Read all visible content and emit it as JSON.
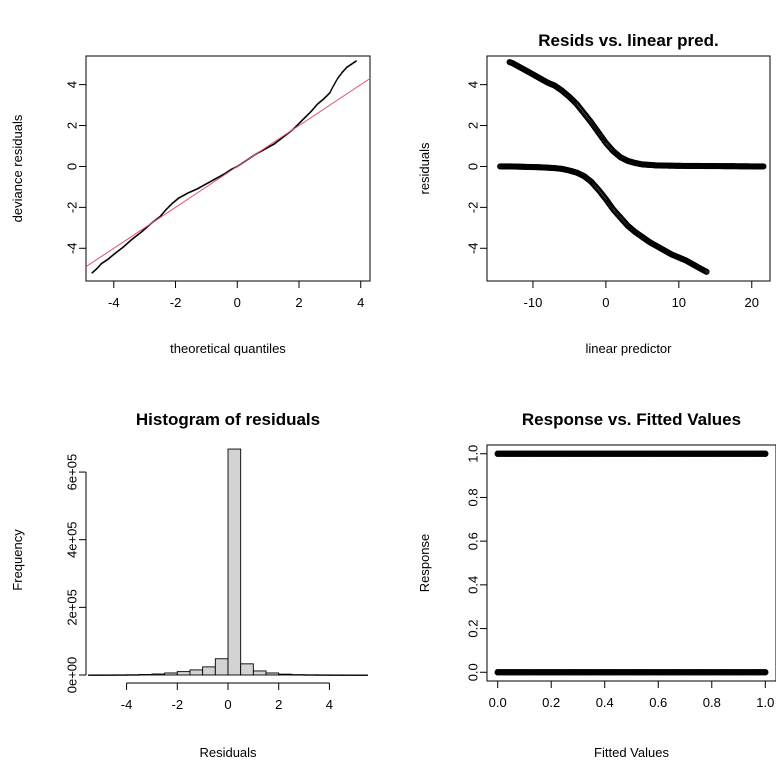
{
  "chart_data": [
    {
      "type": "scatter",
      "title": "",
      "xlabel": "theoretical quantiles",
      "ylabel": "deviance residuals",
      "xlim": [
        -4.9,
        4.3
      ],
      "ylim": [
        -5.6,
        5.4
      ],
      "x_ticks": [
        -4,
        -2,
        0,
        2,
        4
      ],
      "y_ticks": [
        -4,
        -2,
        0,
        2,
        4
      ],
      "point_color": "#000000",
      "reference_line": {
        "color": "#DF536B",
        "intercept": 0,
        "slope": 1
      },
      "points": [
        [
          -4.7,
          -5.2
        ],
        [
          -4.55,
          -5.0
        ],
        [
          -4.4,
          -4.75
        ],
        [
          -4.2,
          -4.55
        ],
        [
          -4.0,
          -4.3
        ],
        [
          -3.7,
          -3.95
        ],
        [
          -3.4,
          -3.55
        ],
        [
          -3.1,
          -3.2
        ],
        [
          -2.8,
          -2.8
        ],
        [
          -2.5,
          -2.45
        ],
        [
          -2.3,
          -2.1
        ],
        [
          -2.1,
          -1.8
        ],
        [
          -1.9,
          -1.55
        ],
        [
          -1.6,
          -1.3
        ],
        [
          -1.3,
          -1.1
        ],
        [
          -1.0,
          -0.85
        ],
        [
          -0.7,
          -0.6
        ],
        [
          -0.4,
          -0.35
        ],
        [
          -0.2,
          -0.15
        ],
        [
          0.0,
          0.0
        ],
        [
          0.3,
          0.3
        ],
        [
          0.6,
          0.6
        ],
        [
          0.9,
          0.85
        ],
        [
          1.2,
          1.1
        ],
        [
          1.5,
          1.45
        ],
        [
          1.8,
          1.8
        ],
        [
          2.0,
          2.1
        ],
        [
          2.2,
          2.4
        ],
        [
          2.4,
          2.7
        ],
        [
          2.6,
          3.05
        ],
        [
          2.8,
          3.3
        ],
        [
          3.0,
          3.6
        ],
        [
          3.1,
          3.9
        ],
        [
          3.25,
          4.3
        ],
        [
          3.4,
          4.6
        ],
        [
          3.55,
          4.85
        ],
        [
          3.7,
          5.0
        ],
        [
          3.85,
          5.15
        ]
      ]
    },
    {
      "type": "scatter",
      "title": "Resids vs. linear pred.",
      "xlabel": "linear predictor",
      "ylabel": "residuals",
      "xlim": [
        -16.3,
        22.5
      ],
      "ylim": [
        -5.6,
        5.4
      ],
      "x_ticks": [
        -10,
        0,
        10,
        20
      ],
      "y_ticks": [
        -4,
        -2,
        0,
        2,
        4
      ],
      "marker": "open-circle",
      "point_color": "#000000",
      "upper_curve": [
        [
          -13.2,
          5.1
        ],
        [
          -12.8,
          5.05
        ],
        [
          -10.5,
          4.6
        ],
        [
          -9.0,
          4.3
        ],
        [
          -8.0,
          4.1
        ],
        [
          -7.0,
          3.95
        ],
        [
          -6.0,
          3.7
        ],
        [
          -5.0,
          3.4
        ],
        [
          -4.0,
          3.05
        ],
        [
          -3.0,
          2.6
        ],
        [
          -2.0,
          2.15
        ],
        [
          -1.0,
          1.65
        ],
        [
          0.0,
          1.15
        ],
        [
          1.0,
          0.75
        ],
        [
          2.0,
          0.45
        ],
        [
          3.0,
          0.27
        ],
        [
          4.0,
          0.17
        ],
        [
          5.0,
          0.1
        ],
        [
          7.0,
          0.05
        ],
        [
          10.0,
          0.03
        ],
        [
          14.0,
          0.02
        ],
        [
          18.0,
          0.01
        ],
        [
          21.0,
          0.0
        ],
        [
          21.6,
          0.0
        ]
      ],
      "lower_curve": [
        [
          -14.5,
          0.0
        ],
        [
          -13.0,
          0.0
        ],
        [
          -11.0,
          -0.02
        ],
        [
          -9.0,
          -0.04
        ],
        [
          -7.0,
          -0.08
        ],
        [
          -6.0,
          -0.12
        ],
        [
          -5.0,
          -0.2
        ],
        [
          -4.0,
          -0.3
        ],
        [
          -3.0,
          -0.47
        ],
        [
          -2.0,
          -0.75
        ],
        [
          -1.0,
          -1.15
        ],
        [
          0.0,
          -1.6
        ],
        [
          1.0,
          -2.1
        ],
        [
          2.0,
          -2.5
        ],
        [
          3.0,
          -2.9
        ],
        [
          4.0,
          -3.2
        ],
        [
          5.0,
          -3.45
        ],
        [
          6.0,
          -3.7
        ],
        [
          7.0,
          -3.9
        ],
        [
          8.0,
          -4.1
        ],
        [
          9.0,
          -4.3
        ],
        [
          10.0,
          -4.45
        ],
        [
          11.0,
          -4.6
        ],
        [
          12.0,
          -4.8
        ],
        [
          13.0,
          -5.0
        ],
        [
          13.8,
          -5.15
        ]
      ]
    },
    {
      "type": "bar",
      "title": "Histogram of residuals",
      "xlabel": "Residuals",
      "ylabel": "Frequency",
      "xlim": [
        -5.6,
        5.6
      ],
      "ylim": [
        0,
        680000
      ],
      "x_ticks": [
        "-4",
        "-2",
        "0",
        "2",
        "4"
      ],
      "x_tick_values": [
        -4,
        -2,
        0,
        2,
        4
      ],
      "y_ticks": [
        "0e+00",
        "2e+05",
        "4e+05",
        "6e+05"
      ],
      "y_tick_values": [
        0,
        200000,
        400000,
        600000
      ],
      "bar_color": "#D3D3D3",
      "bin_edges": [
        -5.5,
        -5.0,
        -4.5,
        -4.0,
        -3.5,
        -3.0,
        -2.5,
        -2.0,
        -1.5,
        -1.0,
        -0.5,
        0.0,
        0.5,
        1.0,
        1.5,
        2.0,
        2.5,
        3.0,
        3.5,
        4.0,
        4.5,
        5.0,
        5.5
      ],
      "values": [
        200,
        300,
        500,
        800,
        1500,
        3000,
        6000,
        10000,
        15000,
        24000,
        48000,
        668000,
        33000,
        12000,
        6000,
        2500,
        1200,
        700,
        400,
        250,
        150,
        100
      ]
    },
    {
      "type": "scatter",
      "title": "Response vs. Fitted Values",
      "xlabel": "Fitted Values",
      "ylabel": "Response",
      "xlim": [
        -0.04,
        1.04
      ],
      "ylim": [
        -0.04,
        1.04
      ],
      "x_ticks": [
        "0.0",
        "0.2",
        "0.4",
        "0.6",
        "0.8",
        "1.0"
      ],
      "x_tick_values": [
        0,
        0.2,
        0.4,
        0.6,
        0.8,
        1.0
      ],
      "y_ticks": [
        "0.0",
        "0.2",
        "0.4",
        "0.6",
        "0.8",
        "1.0"
      ],
      "y_tick_values": [
        0,
        0.2,
        0.4,
        0.6,
        0.8,
        1.0
      ],
      "point_color": "#000000",
      "bands": [
        {
          "response": 1,
          "fitted_min": 0.0,
          "fitted_max": 1.0
        },
        {
          "response": 0,
          "fitted_min": 0.0,
          "fitted_max": 1.0
        }
      ]
    }
  ]
}
